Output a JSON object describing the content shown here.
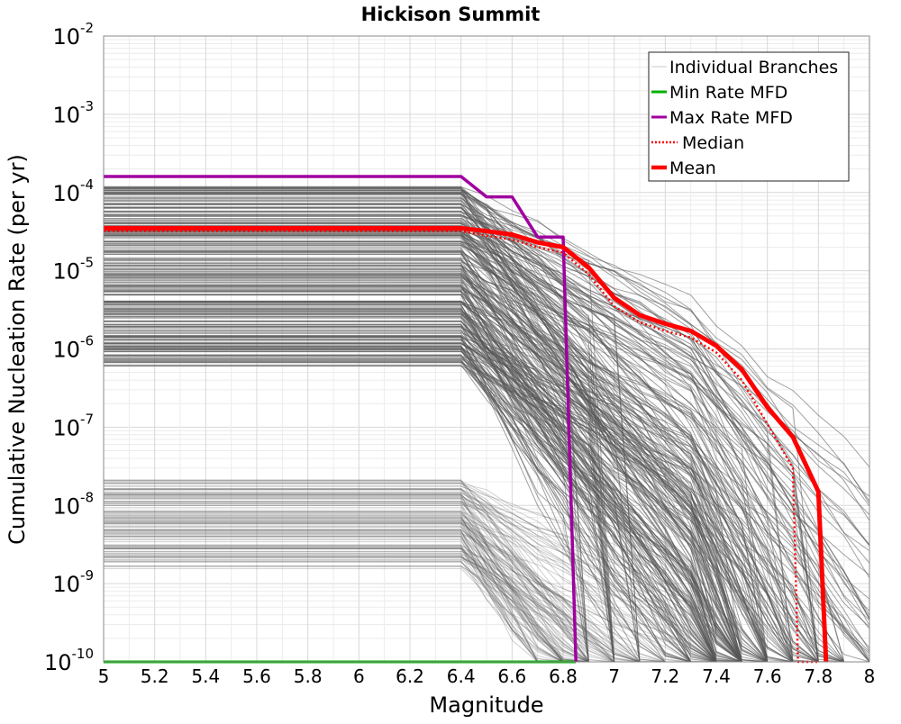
{
  "chart_data": {
    "type": "line",
    "title": "Hickison Summit",
    "xlabel": "Magnitude",
    "ylabel": "Cumulative Nucleation Rate (per yr)",
    "x_scale": "linear",
    "y_scale": "log",
    "xlim": [
      5,
      8
    ],
    "ylim": [
      1e-10,
      0.01
    ],
    "x_ticks": [
      "5",
      "5.2",
      "5.4",
      "5.6",
      "5.8",
      "6",
      "6.2",
      "6.4",
      "6.6",
      "6.8",
      "7",
      "7.2",
      "7.4",
      "7.6",
      "7.8",
      "8"
    ],
    "y_tick_base": "10",
    "y_tick_exponents": [
      "-10",
      "-9",
      "-8",
      "-7",
      "-6",
      "-5",
      "-4",
      "-3",
      "-2"
    ],
    "grid": true,
    "legend_position": "top-right",
    "series": [
      {
        "name": "Min Rate MFD",
        "color": "#00b000",
        "style": "solid",
        "x": [
          5.0,
          6.4,
          6.5,
          6.6,
          6.7,
          6.8,
          6.85
        ],
        "y": [
          1e-10,
          1e-10,
          1e-10,
          1e-10,
          1e-10,
          1e-10,
          1e-10
        ]
      },
      {
        "name": "Max Rate MFD",
        "color": "#a000a0",
        "style": "solid",
        "x": [
          5.0,
          6.4,
          6.5,
          6.6,
          6.7,
          6.8,
          6.85
        ],
        "y": [
          0.00016,
          0.00016,
          8.8e-05,
          8.8e-05,
          2.7e-05,
          2.7e-05,
          1e-10
        ]
      },
      {
        "name": "Median",
        "color": "#ff0000",
        "style": "dotted",
        "x": [
          5.0,
          6.4,
          6.5,
          6.6,
          6.7,
          6.8,
          6.9,
          7.0,
          7.1,
          7.2,
          7.3,
          7.4,
          7.5,
          7.6,
          7.7,
          7.72,
          7.8
        ],
        "y": [
          3.2e-05,
          3.2e-05,
          2.8e-05,
          2.5e-05,
          2e-05,
          1.7e-05,
          9e-06,
          3.5e-06,
          2.2e-06,
          1.7e-06,
          1.4e-06,
          9e-07,
          4e-07,
          1.1e-07,
          3e-08,
          1e-10,
          1e-10
        ]
      },
      {
        "name": "Mean",
        "color": "#ff0000",
        "style": "solid",
        "x": [
          5.0,
          6.4,
          6.5,
          6.6,
          6.7,
          6.8,
          6.9,
          7.0,
          7.1,
          7.2,
          7.3,
          7.4,
          7.5,
          7.6,
          7.7,
          7.8,
          7.83
        ],
        "y": [
          3.5e-05,
          3.5e-05,
          3.2e-05,
          2.9e-05,
          2.3e-05,
          2e-05,
          1.1e-05,
          4.5e-06,
          2.7e-06,
          2.1e-06,
          1.7e-06,
          1.1e-06,
          5.5e-07,
          1.8e-07,
          7.5e-08,
          1.5e-08,
          1e-10
        ]
      }
    ],
    "branches": {
      "name": "Individual Branches",
      "color": "#555555",
      "count_shown_approx": "hundreds",
      "upper_group_flat_range": [
        6e-07,
        0.00012
      ],
      "lower_group_flat_range": [
        1.5e-09,
        2.2e-08
      ],
      "flat_until": 6.4,
      "sharp_drop_magnitudes": [
        6.82,
        6.92,
        7.03,
        7.45,
        7.52,
        7.58,
        7.65,
        7.72,
        7.8,
        7.85
      ]
    }
  }
}
